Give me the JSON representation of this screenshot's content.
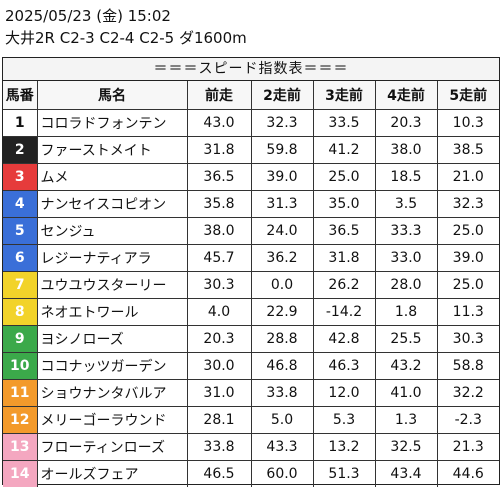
{
  "header": {
    "datetime": "2025/05/23 (金) 15:02",
    "race": "大井2R C2-3 C2-4 C2-5 ダ1600m"
  },
  "table_title": "＝＝＝スピード指数表＝＝＝",
  "columns": [
    "馬番",
    "馬名",
    "前走",
    "2走前",
    "3走前",
    "4走前",
    "5走前"
  ],
  "gate_colors": {
    "1": "#ffffff",
    "2": "#222222",
    "3": "#e63b3b",
    "4": "#3a6fd8",
    "5": "#f2d32a",
    "6": "#3ba94a",
    "7": "#f39a2b",
    "8": "#f4a7c0"
  },
  "rows": [
    {
      "no": "1",
      "gate": "1",
      "name": "コロラドフォンテン",
      "v": [
        "43.0",
        "32.3",
        "33.5",
        "20.3",
        "10.3"
      ]
    },
    {
      "no": "2",
      "gate": "2",
      "name": "ファーストメイト",
      "v": [
        "31.8",
        "59.8",
        "41.2",
        "38.0",
        "38.5"
      ]
    },
    {
      "no": "3",
      "gate": "3",
      "name": "ムメ",
      "v": [
        "36.5",
        "39.0",
        "25.0",
        "18.5",
        "21.0"
      ]
    },
    {
      "no": "4",
      "gate": "4",
      "name": "ナンセイスコピオン",
      "v": [
        "35.8",
        "31.3",
        "35.0",
        "3.5",
        "32.3"
      ]
    },
    {
      "no": "5",
      "gate": "4",
      "name": "センジュ",
      "v": [
        "38.0",
        "24.0",
        "36.5",
        "33.3",
        "25.0"
      ]
    },
    {
      "no": "6",
      "gate": "4",
      "name": "レジーナティアラ",
      "v": [
        "45.7",
        "36.2",
        "31.8",
        "33.0",
        "39.0"
      ]
    },
    {
      "no": "7",
      "gate": "5",
      "name": "ユウユウスターリー",
      "v": [
        "30.3",
        "0.0",
        "26.2",
        "28.0",
        "25.0"
      ]
    },
    {
      "no": "8",
      "gate": "5",
      "name": "ネオエトワール",
      "v": [
        "4.0",
        "22.9",
        "-14.2",
        "1.8",
        "11.3"
      ]
    },
    {
      "no": "9",
      "gate": "6",
      "name": "ヨシノローズ",
      "v": [
        "20.3",
        "28.8",
        "42.8",
        "25.5",
        "30.3"
      ]
    },
    {
      "no": "10",
      "gate": "6",
      "name": "ココナッツガーデン",
      "v": [
        "30.0",
        "46.8",
        "46.3",
        "43.2",
        "58.8"
      ]
    },
    {
      "no": "11",
      "gate": "7",
      "name": "ショウナンタバルア",
      "v": [
        "31.0",
        "33.8",
        "12.0",
        "41.0",
        "32.2"
      ]
    },
    {
      "no": "12",
      "gate": "7",
      "name": "メリーゴーラウンド",
      "v": [
        "28.1",
        "5.0",
        "5.3",
        "1.3",
        "-2.3"
      ]
    },
    {
      "no": "13",
      "gate": "8",
      "name": "フローティンローズ",
      "v": [
        "33.8",
        "43.3",
        "13.2",
        "32.5",
        "21.3"
      ]
    },
    {
      "no": "14",
      "gate": "8",
      "name": "オールズフェア",
      "v": [
        "46.5",
        "60.0",
        "51.3",
        "43.4",
        "44.6"
      ]
    }
  ]
}
